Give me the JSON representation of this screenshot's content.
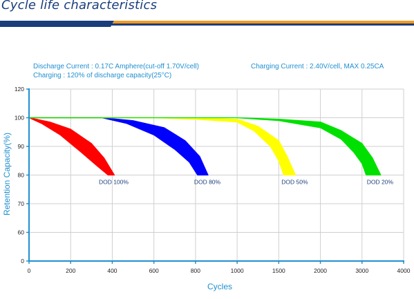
{
  "page": {
    "title": "Cycle life characteristics"
  },
  "conditions": {
    "discharge_label": "Discharge Current",
    "discharge_value": " : 0.17C Amphere(cut-off 1.70V/cell)",
    "charging_label": "Charging",
    "charging_value": " : 120% of discharge capacity(25°C)",
    "charging_current_label": "Charging Current",
    "charging_current_value": " : 2.40V/cell, MAX 0.25CA"
  },
  "colors": {
    "header_navy": "#1a3d7c",
    "header_orange": "#f29a1f",
    "accent_blue": "#1f8fd0",
    "axis": "#1f8fd0",
    "grid": "#cfcfcf"
  },
  "chart_data": {
    "type": "area",
    "xlabel": "Cycles",
    "ylabel": "Retention Capacity(%)",
    "x_tick_labels": [
      "0",
      "200",
      "400",
      "600",
      "800",
      "1000",
      "1500",
      "2000",
      "3000",
      "4000"
    ],
    "y_ticks": [
      0,
      60,
      70,
      80,
      90,
      100,
      120
    ],
    "y_tick_labels": [
      "0",
      "60",
      "70",
      "80",
      "90",
      "100",
      "120"
    ],
    "ylim": [
      0,
      120
    ],
    "grid": true,
    "series": [
      {
        "name": "DOD 100%",
        "color": "#ff0000",
        "upper": [
          [
            0,
            100
          ],
          [
            100,
            98.5
          ],
          [
            200,
            96
          ],
          [
            300,
            91
          ],
          [
            360,
            86
          ],
          [
            410,
            80
          ]
        ],
        "lower": [
          [
            0,
            100
          ],
          [
            60,
            98
          ],
          [
            150,
            94
          ],
          [
            250,
            88
          ],
          [
            330,
            83
          ],
          [
            380,
            80
          ]
        ]
      },
      {
        "name": "DOD 80%",
        "color": "#0000ff",
        "upper": [
          [
            350,
            100
          ],
          [
            500,
            99
          ],
          [
            650,
            96.5
          ],
          [
            750,
            92
          ],
          [
            820,
            86.5
          ],
          [
            860,
            80
          ]
        ],
        "lower": [
          [
            350,
            100
          ],
          [
            470,
            98
          ],
          [
            600,
            94
          ],
          [
            700,
            89
          ],
          [
            770,
            84.5
          ],
          [
            810,
            80
          ]
        ]
      },
      {
        "name": "DOD 50%",
        "color": "#ffff00",
        "upper": [
          [
            600,
            100
          ],
          [
            800,
            100
          ],
          [
            1000,
            99.5
          ],
          [
            1250,
            97
          ],
          [
            1500,
            92
          ],
          [
            1600,
            86.5
          ],
          [
            1700,
            80
          ]
        ],
        "lower": [
          [
            600,
            100
          ],
          [
            800,
            99.5
          ],
          [
            1000,
            98.5
          ],
          [
            1200,
            95.5
          ],
          [
            1400,
            90
          ],
          [
            1500,
            85
          ],
          [
            1560,
            80
          ]
        ]
      },
      {
        "name": "DOD 20%",
        "color": "#00e000",
        "upper": [
          [
            0,
            100
          ],
          [
            1000,
            100
          ],
          [
            1500,
            99.5
          ],
          [
            2000,
            98.5
          ],
          [
            2500,
            95.5
          ],
          [
            3000,
            91
          ],
          [
            3250,
            86
          ],
          [
            3450,
            80
          ]
        ],
        "lower": [
          [
            0,
            100
          ],
          [
            1000,
            100
          ],
          [
            1500,
            99
          ],
          [
            2000,
            96.5
          ],
          [
            2500,
            92.5
          ],
          [
            2800,
            88
          ],
          [
            3000,
            84
          ],
          [
            3100,
            80
          ]
        ]
      }
    ]
  }
}
